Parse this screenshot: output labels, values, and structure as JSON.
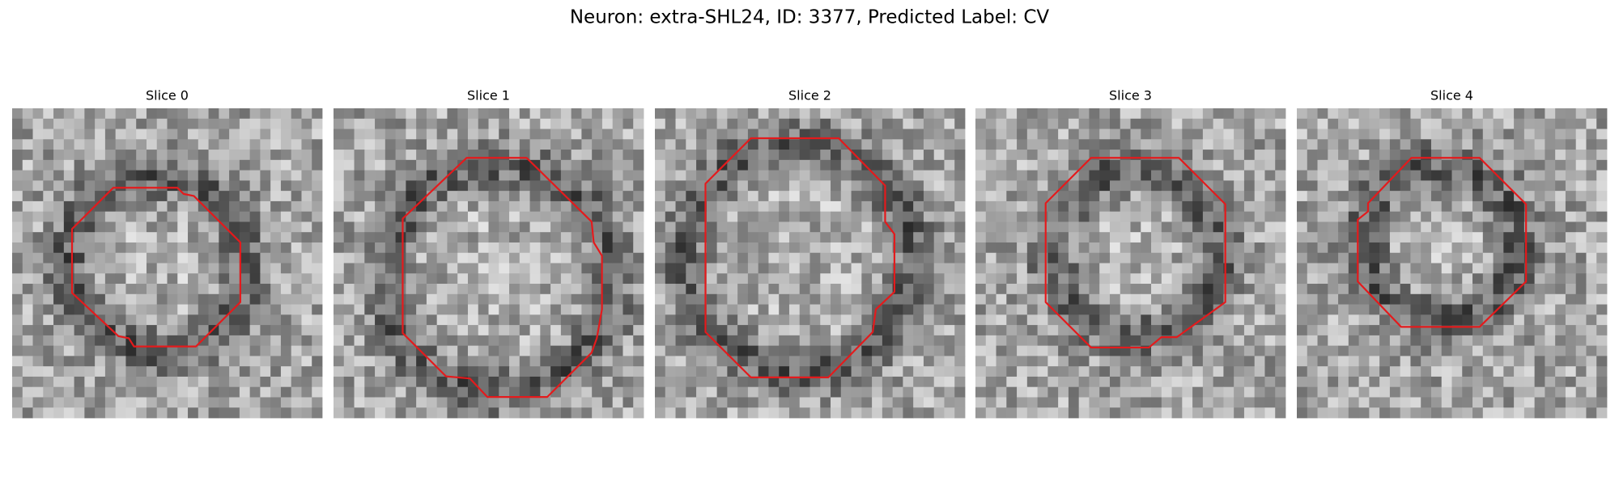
{
  "title": "Neuron: extra-SHL24, ID: 3377, Predicted Label: CV",
  "panels": [
    {
      "title": "Slice 0"
    },
    {
      "title": "Slice 1"
    },
    {
      "title": "Slice 2"
    },
    {
      "title": "Slice 3"
    },
    {
      "title": "Slice 4"
    }
  ]
}
